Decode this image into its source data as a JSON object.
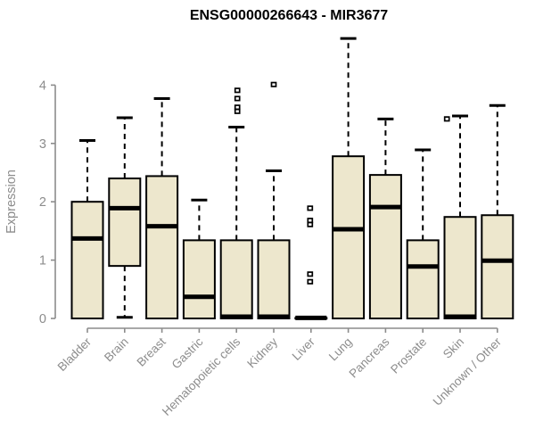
{
  "chart_data": {
    "type": "boxplot",
    "title": "ENSG00000266643 - MIR3677",
    "ylabel": "Expression",
    "xlabel": "",
    "ylim": [
      0,
      4
    ],
    "yticks": [
      0,
      1,
      2,
      3,
      4
    ],
    "grid": false,
    "legend": "none",
    "categories": [
      "Bladder",
      "Brain",
      "Breast",
      "Gastric",
      "Hematopoietic cells",
      "Kidney",
      "Liver",
      "Lung",
      "Pancreas",
      "Prostate",
      "Skin",
      "Unknown / Other"
    ],
    "boxes": [
      {
        "category": "Bladder",
        "whisker_low": 0,
        "q1": 0,
        "median": 1.37,
        "q3": 2.0,
        "whisker_high": 3.05,
        "outliers": []
      },
      {
        "category": "Brain",
        "whisker_low": 0.02,
        "q1": 0.9,
        "median": 1.89,
        "q3": 2.4,
        "whisker_high": 3.44,
        "outliers": []
      },
      {
        "category": "Breast",
        "whisker_low": 0,
        "q1": 0,
        "median": 1.58,
        "q3": 2.44,
        "whisker_high": 3.77,
        "outliers": []
      },
      {
        "category": "Gastric",
        "whisker_low": 0,
        "q1": 0,
        "median": 0.37,
        "q3": 1.34,
        "whisker_high": 2.03,
        "outliers": []
      },
      {
        "category": "Hematopoietic cells",
        "whisker_low": 0,
        "q1": 0,
        "median": 0.03,
        "q3": 1.34,
        "whisker_high": 3.28,
        "outliers": [
          {
            "v": 3.91,
            "dx": 1
          },
          {
            "v": 3.77,
            "dx": 1
          },
          {
            "v": 3.62,
            "dx": 1
          },
          {
            "v": 3.55,
            "dx": 1
          }
        ]
      },
      {
        "category": "Kidney",
        "whisker_low": 0,
        "q1": 0,
        "median": 0.03,
        "q3": 1.34,
        "whisker_high": 2.53,
        "outliers": [
          {
            "v": 4.01,
            "dx": 0
          }
        ]
      },
      {
        "category": "Liver",
        "whisker_low": 0.01,
        "q1": 0.01,
        "median": 0.01,
        "q3": 0.01,
        "whisker_high": 0.01,
        "outliers": [
          {
            "v": 1.89,
            "dx": -1
          },
          {
            "v": 1.68,
            "dx": -1
          },
          {
            "v": 1.61,
            "dx": -1
          },
          {
            "v": 0.76,
            "dx": -1
          },
          {
            "v": 0.63,
            "dx": -1
          }
        ]
      },
      {
        "category": "Lung",
        "whisker_low": 0,
        "q1": 0,
        "median": 1.53,
        "q3": 2.78,
        "whisker_high": 4.8,
        "outliers": []
      },
      {
        "category": "Pancreas",
        "whisker_low": 0,
        "q1": 0,
        "median": 1.91,
        "q3": 2.46,
        "whisker_high": 3.42,
        "outliers": []
      },
      {
        "category": "Prostate",
        "whisker_low": 0,
        "q1": 0,
        "median": 0.89,
        "q3": 1.34,
        "whisker_high": 2.89,
        "outliers": [
          {
            "v": 3.42,
            "dx": 27
          }
        ]
      },
      {
        "category": "Skin",
        "whisker_low": 0,
        "q1": 0,
        "median": 0.03,
        "q3": 1.74,
        "whisker_high": 3.47,
        "outliers": []
      },
      {
        "category": "Unknown / Other",
        "whisker_low": 0,
        "q1": 0,
        "median": 0.99,
        "q3": 1.77,
        "whisker_high": 3.65,
        "outliers": []
      }
    ],
    "colors": {
      "box_fill": "#EDE7CD",
      "box_stroke": "#000000",
      "median": "#000000",
      "axis": "#8C8C8C",
      "text": "#8C8C8C",
      "title": "#000000",
      "background": "#FFFFFF"
    }
  }
}
